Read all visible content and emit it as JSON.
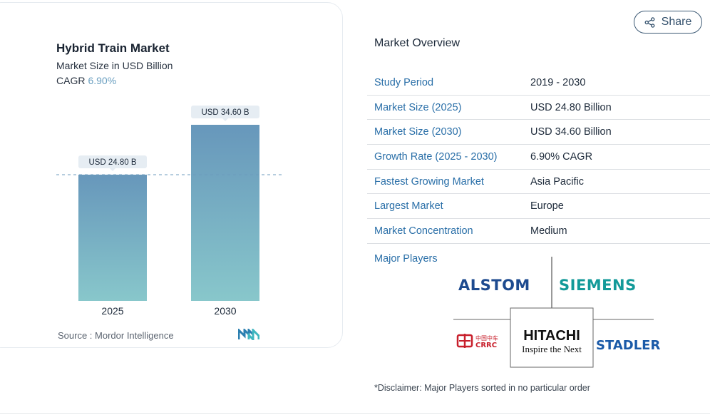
{
  "chart_data": {
    "type": "bar",
    "title": "Hybrid Train Market",
    "subtitle": "Market Size in USD Billion",
    "cagr_label": "CAGR",
    "cagr_value": "6.90%",
    "categories": [
      "2025",
      "2030"
    ],
    "values": [
      24.8,
      34.6
    ],
    "data_labels": [
      "USD 24.80 B",
      "USD 34.60 B"
    ],
    "ylim": [
      0,
      34.6
    ],
    "grid": false,
    "reference_line_value": 24.8,
    "colors": {
      "bar_top": "#6797bb",
      "bar_bottom": "#88c7cb",
      "label_bg": "#e6edf3",
      "ref_line": "#6c9bbd"
    },
    "source": "Source :  Mordor Intelligence"
  },
  "share": {
    "label": "Share",
    "icon": "share-icon"
  },
  "overview": {
    "title": "Market Overview",
    "rows": [
      {
        "label": "Study Period",
        "value": "2019 - 2030"
      },
      {
        "label": "Market Size (2025)",
        "value": "USD 24.80 Billion"
      },
      {
        "label": "Market Size (2030)",
        "value": "USD 34.60 Billion"
      },
      {
        "label": "Growth Rate (2025 - 2030)",
        "value": "6.90% CAGR"
      },
      {
        "label": "Fastest Growing Market",
        "value": "Asia Pacific"
      },
      {
        "label": "Largest Market",
        "value": "Europe"
      },
      {
        "label": "Market Concentration",
        "value": "Medium"
      }
    ]
  },
  "major_players": {
    "title": "Major Players",
    "logos": [
      "ALSTOM",
      "SIEMENS",
      "CRRC",
      "HITACHI",
      "STADLER"
    ],
    "hitachi_tagline": "Inspire the Next",
    "crrc_chinese": "中国中车",
    "disclaimer": "*Disclaimer: Major Players sorted in no particular order"
  }
}
